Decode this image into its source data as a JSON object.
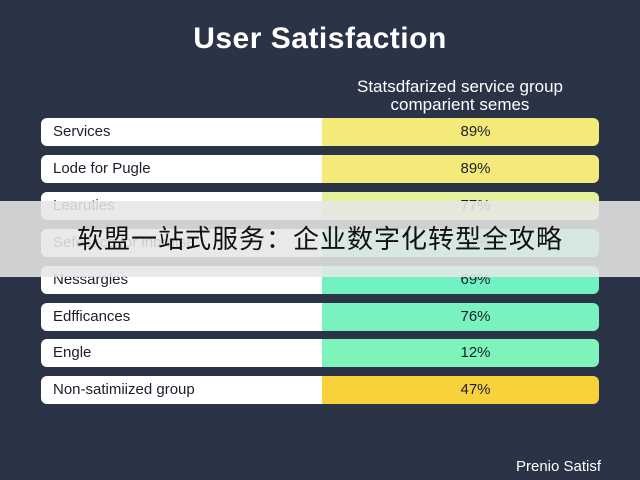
{
  "chart_data": {
    "type": "table",
    "title": "User Satisfaction",
    "subtitle": "Statsdfarized service group comparient semes",
    "rows": [
      {
        "label": "Services",
        "value": "89%",
        "color": "#f4ea7a"
      },
      {
        "label": "Lode for Pugle",
        "value": "89%",
        "color": "#f4ea7a"
      },
      {
        "label": "Learuties",
        "value": "77%",
        "color": "#e2f29c"
      },
      {
        "label": "Sefesace for inbrutse",
        "value": "41%",
        "color": "#6ff0c6"
      },
      {
        "label": "Nessargles",
        "value": "69%",
        "color": "#72f2c2"
      },
      {
        "label": "Edfficances",
        "value": "76%",
        "color": "#78f3bf"
      },
      {
        "label": "Engle",
        "value": "12%",
        "color": "#7ef4bb"
      },
      {
        "label": "Non-satimiized group",
        "value": "47%",
        "color": "#f8d23a"
      }
    ]
  },
  "overlay_banner": "软盟一站式服务：企业数字化转型全攻略",
  "corner_text": "Prenio Satisf"
}
